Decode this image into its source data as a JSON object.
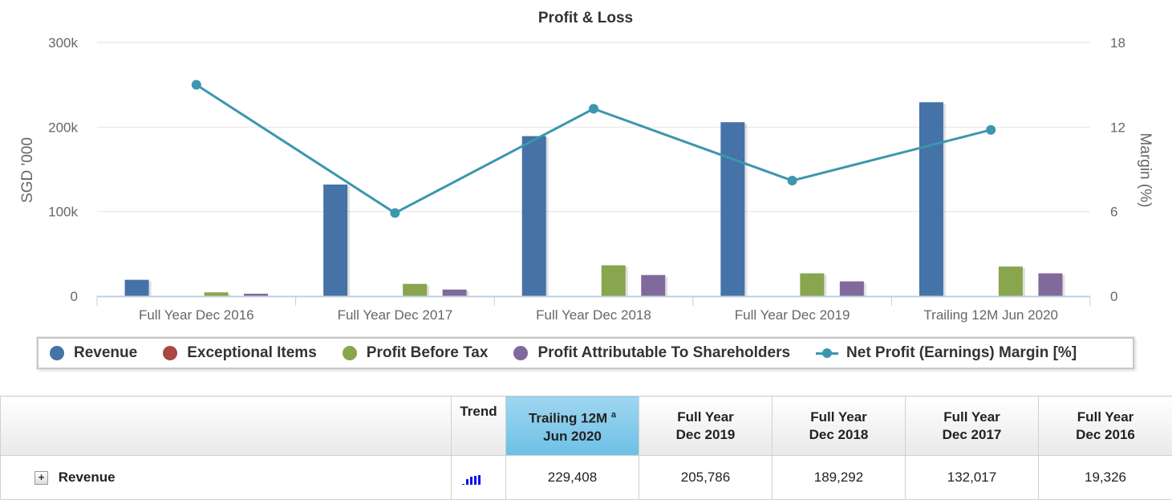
{
  "chart_data": {
    "type": "bar",
    "title": "Profit & Loss",
    "categories": [
      "Full Year Dec 2016",
      "Full Year Dec 2017",
      "Full Year Dec 2018",
      "Full Year Dec 2019",
      "Trailing 12M Jun 2020"
    ],
    "ylabel": "SGD '000",
    "ylabel_right": "Margin (%)",
    "ylim": [
      0,
      300000
    ],
    "ylim_right": [
      0,
      18
    ],
    "yticks": [
      "0",
      "100k",
      "200k",
      "300k"
    ],
    "yticks_right": [
      "0",
      "6",
      "12",
      "18"
    ],
    "grid": true,
    "legend_position": "bottom",
    "series": [
      {
        "name": "Revenue",
        "kind": "bar",
        "color": "#4572a7",
        "values": [
          19326,
          132017,
          189292,
          205786,
          229408
        ]
      },
      {
        "name": "Exceptional Items",
        "kind": "bar",
        "color": "#aa4643",
        "values": [
          0,
          0,
          0,
          0,
          0
        ]
      },
      {
        "name": "Profit Before Tax",
        "kind": "bar",
        "color": "#89a54e",
        "values": [
          4500,
          14500,
          36500,
          27000,
          35000
        ]
      },
      {
        "name": "Profit Attributable To Shareholders",
        "kind": "bar",
        "color": "#80699b",
        "values": [
          2900,
          7800,
          25000,
          17500,
          27000
        ]
      },
      {
        "name": "Net Profit (Earnings) Margin [%]",
        "kind": "line",
        "axis": "right",
        "color": "#3d96ae",
        "values": [
          15.0,
          5.9,
          13.3,
          8.2,
          11.8
        ]
      }
    ]
  },
  "table": {
    "trend_header": "Trend",
    "columns": [
      {
        "line1": "Trailing 12M",
        "sup": "a",
        "line2": "Jun 2020"
      },
      {
        "line1": "Full Year",
        "line2": "Dec 2019"
      },
      {
        "line1": "Full Year",
        "line2": "Dec 2018"
      },
      {
        "line1": "Full Year",
        "line2": "Dec 2017"
      },
      {
        "line1": "Full Year",
        "line2": "Dec 2016"
      }
    ],
    "rows": [
      {
        "label": "Revenue",
        "expand": "+",
        "trend_color": "#1010ee",
        "values": [
          "229,408",
          "205,786",
          "189,292",
          "132,017",
          "19,326"
        ]
      }
    ]
  }
}
